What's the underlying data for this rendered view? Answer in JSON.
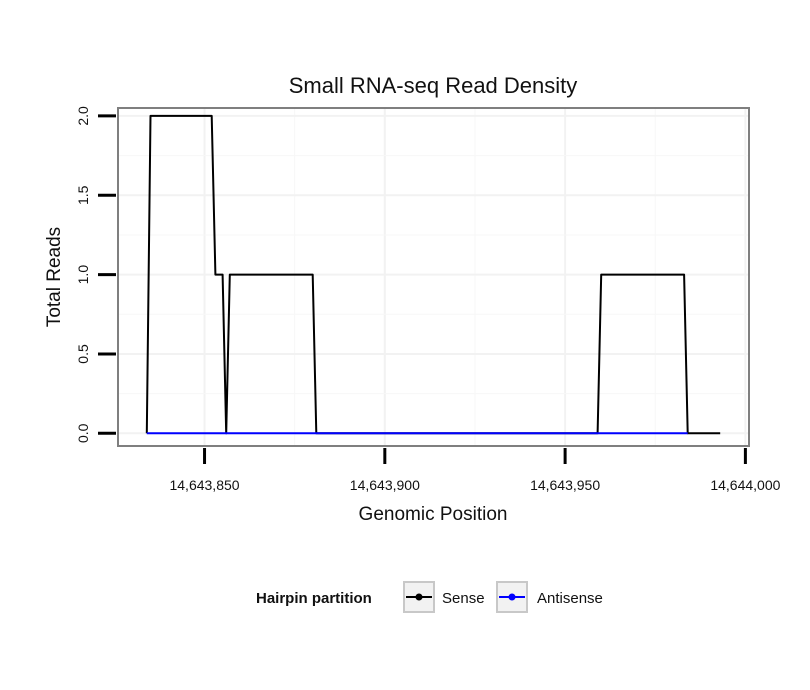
{
  "chart_data": {
    "type": "line",
    "title": "Small RNA-seq Read Density",
    "xlabel": "Genomic Position",
    "ylabel": "Total Reads",
    "xlim": [
      14643826,
      14644001
    ],
    "ylim": [
      -0.08,
      2.05
    ],
    "x_ticks": [
      14643850,
      14643900,
      14643950,
      14644000
    ],
    "x_tick_labels": [
      "14,643,850",
      "14,643,900",
      "14,643,950",
      "14,644,000"
    ],
    "y_ticks": [
      0,
      0.5,
      1,
      1.5,
      2
    ],
    "y_tick_labels": [
      "0.0",
      "0.5",
      "1.0",
      "1.5",
      "2.0"
    ],
    "grid": true,
    "legend": {
      "title": "Hairpin partition",
      "position": "bottom",
      "entries": [
        {
          "name": "Sense",
          "color": "#000000"
        },
        {
          "name": "Antisense",
          "color": "#0000ff"
        }
      ]
    },
    "series": [
      {
        "name": "Sense",
        "color": "#000000",
        "x": [
          14643834,
          14643835,
          14643852,
          14643853,
          14643855,
          14643856,
          14643857,
          14643880,
          14643881,
          14643959,
          14643960,
          14643983,
          14643984,
          14643993
        ],
        "y": [
          0,
          2,
          2,
          1,
          1,
          0,
          1,
          1,
          0,
          0,
          1,
          1,
          0,
          0
        ]
      },
      {
        "name": "Antisense",
        "color": "#0000ff",
        "x": [
          14643834,
          14643984
        ],
        "y": [
          0,
          0
        ]
      }
    ]
  }
}
